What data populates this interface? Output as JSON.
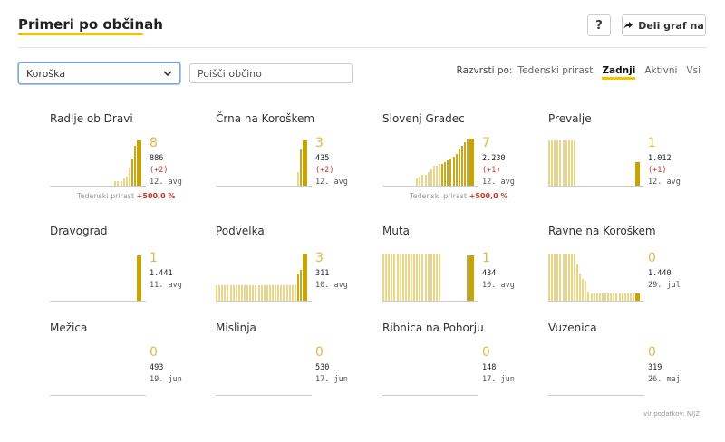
{
  "header": {
    "title": "Primeri po občinah",
    "help_label": "?",
    "share_label": "Deli graf na"
  },
  "filters": {
    "region_selected": "Koroška",
    "search_placeholder": "Poišči občino",
    "sort_label": "Razvrsti po:",
    "sort_options": [
      "Tedenski prirast",
      "Zadnji",
      "Aktivni",
      "Vsi"
    ],
    "sort_active": "Zadnji"
  },
  "weekly_label": "Tedenski prirast",
  "municipalities": [
    {
      "name": "Radlje ob Dravi",
      "latest": "8",
      "total": "886",
      "diff": "(+2)",
      "date": "12. avg",
      "weekly": "+500,0 %"
    },
    {
      "name": "Črna na Koroškem",
      "latest": "3",
      "total": "435",
      "diff": "(+2)",
      "date": "12. avg",
      "weekly": ""
    },
    {
      "name": "Slovenj Gradec",
      "latest": "7",
      "total": "2.230",
      "diff": "(+1)",
      "date": "12. avg",
      "weekly": "+500,0 %"
    },
    {
      "name": "Prevalje",
      "latest": "1",
      "total": "1.012",
      "diff": "(+1)",
      "date": "12. avg",
      "weekly": ""
    },
    {
      "name": "Dravograd",
      "latest": "1",
      "total": "1.441",
      "diff": "",
      "date": "11. avg",
      "weekly": ""
    },
    {
      "name": "Podvelka",
      "latest": "3",
      "total": "311",
      "diff": "",
      "date": "10. avg",
      "weekly": ""
    },
    {
      "name": "Muta",
      "latest": "1",
      "total": "434",
      "diff": "",
      "date": "10. avg",
      "weekly": ""
    },
    {
      "name": "Ravne na Koroškem",
      "latest": "0",
      "total": "1.440",
      "diff": "",
      "date": "29. jul",
      "weekly": ""
    },
    {
      "name": "Mežica",
      "latest": "0",
      "total": "493",
      "diff": "",
      "date": "19. jun",
      "weekly": ""
    },
    {
      "name": "Mislinja",
      "latest": "0",
      "total": "530",
      "diff": "",
      "date": "17. jun",
      "weekly": ""
    },
    {
      "name": "Ribnica na Pohorju",
      "latest": "0",
      "total": "148",
      "diff": "",
      "date": "17. jun",
      "weekly": ""
    },
    {
      "name": "Vuzenica",
      "latest": "0",
      "total": "319",
      "diff": "",
      "date": "26. maj",
      "weekly": ""
    }
  ],
  "source": "vir podatkov: NIJZ",
  "accent_color": "#f5c400"
}
